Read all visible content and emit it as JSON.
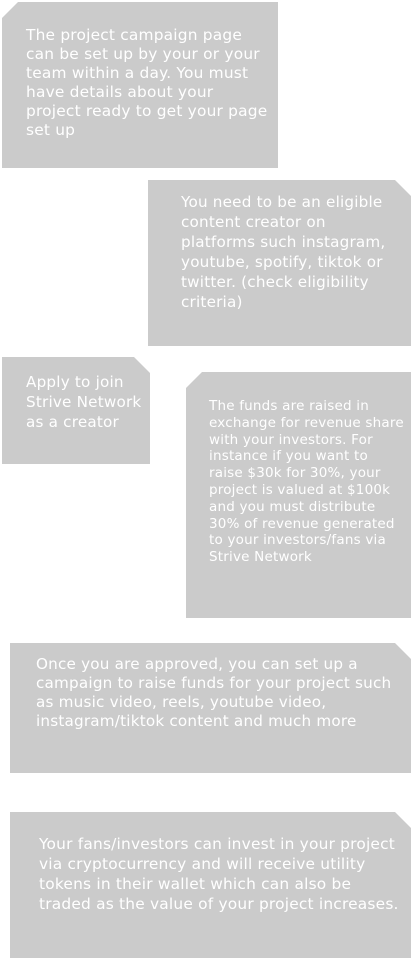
{
  "cards": [
    {
      "text": "The project campaign page can be set up by your or your team within a day. You must have details about your project ready to get your page set up"
    },
    {
      "text": "You need to be an eligible content creator on platforms such instagram, youtube, spotify, tiktok or twitter. (check eligibility criteria)"
    },
    {
      "text": "Apply to join Strive Network as a creator"
    },
    {
      "text": "The funds are raised in exchange for revenue share with your investors. For instance if you want to raise $30k for 30%, your project is valued at $100k and you must distribute 30% of revenue generated to your investors/fans via Strive Network"
    },
    {
      "text": "Once you are approved, you can set up a campaign to raise funds for your project such as music video, reels, youtube video, instagram/tiktok content and much more"
    },
    {
      "text": "Your fans/investors can invest in your project via cryptocurrency and will receive utility tokens in their wallet which can also be traded as the value of your project increases."
    }
  ]
}
